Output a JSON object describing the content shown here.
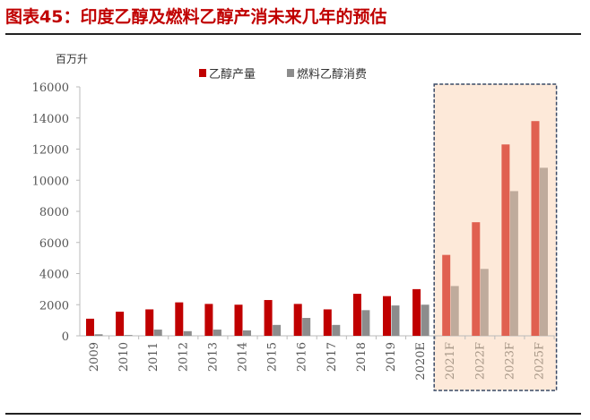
{
  "title": "图表45：印度乙醇及燃料乙醇产消未来几年的预估",
  "chart_data": {
    "type": "bar",
    "title": "",
    "ylabel": "百万升",
    "ylim": [
      0,
      16000
    ],
    "yticks": [
      0,
      2000,
      4000,
      6000,
      8000,
      10000,
      12000,
      14000,
      16000
    ],
    "grid": false,
    "legend": "top-center",
    "categories": [
      "2009",
      "2010",
      "2011",
      "2012",
      "2013",
      "2014",
      "2015",
      "2016",
      "2017",
      "2018",
      "2019",
      "2020E",
      "2021F",
      "2022F",
      "2023F",
      "2025F"
    ],
    "series": [
      {
        "name": "乙醇产量",
        "color": "#c00000",
        "forecast_color": "#e06050",
        "values": [
          1100,
          1550,
          1700,
          2150,
          2050,
          2000,
          2300,
          2050,
          1700,
          2700,
          2550,
          3000,
          5200,
          7300,
          12300,
          13800
        ]
      },
      {
        "name": "燃料乙醇消费",
        "color": "#8c8c8c",
        "forecast_color": "#bfab9c",
        "values": [
          100,
          50,
          400,
          300,
          400,
          350,
          700,
          1150,
          700,
          1650,
          1950,
          2000,
          3200,
          4300,
          9300,
          10800
        ]
      }
    ],
    "highlight": {
      "categories": [
        "2021F",
        "2022F",
        "2023F",
        "2025F"
      ],
      "fill": "#fde9d9",
      "border": "#3a4a66"
    }
  }
}
